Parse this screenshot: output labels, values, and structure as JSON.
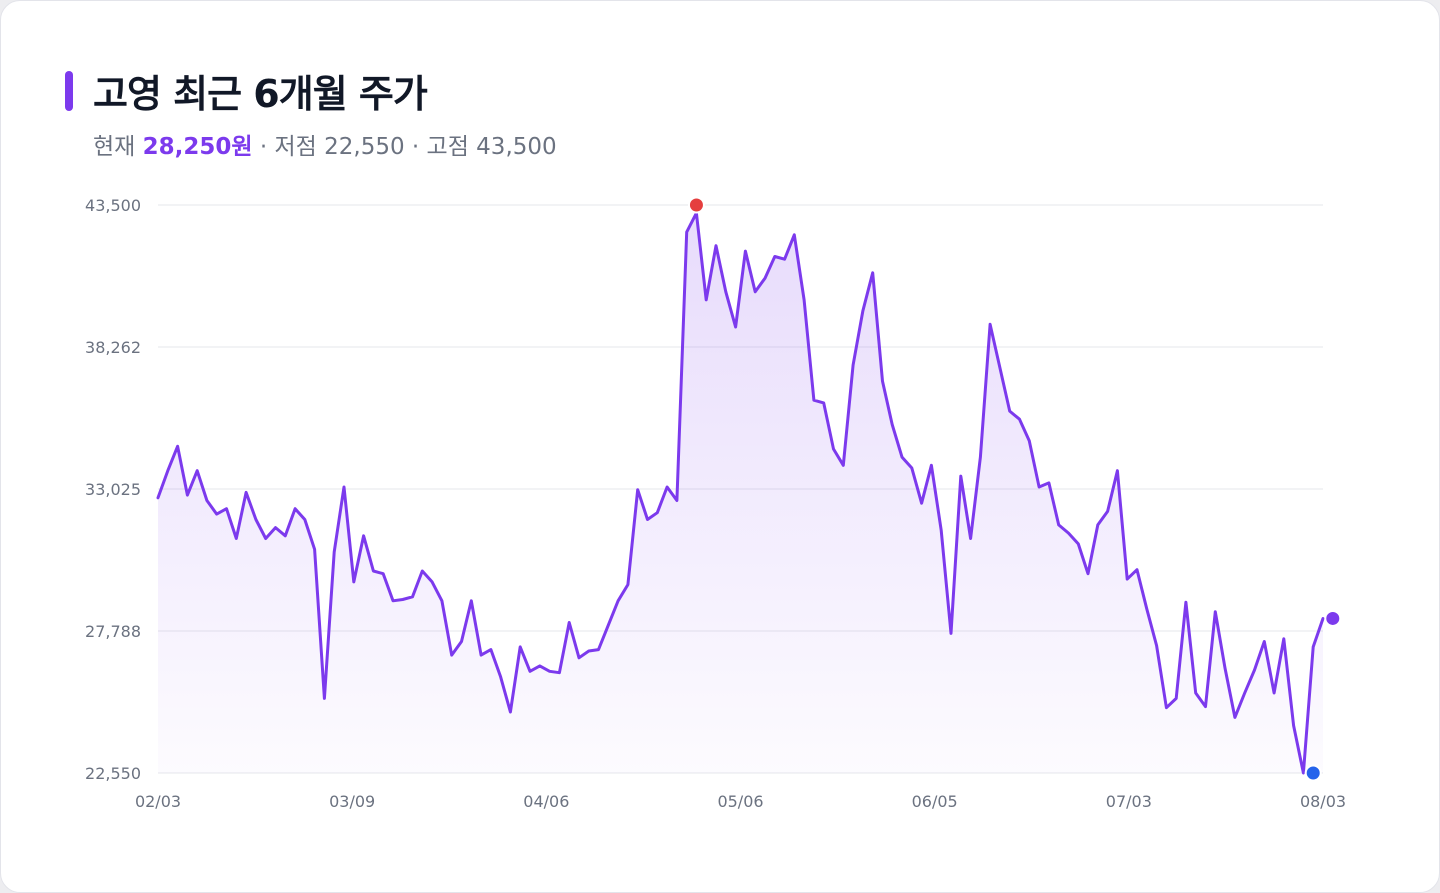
{
  "header": {
    "title": "고영 최근 6개월 주가",
    "now_label": "현재",
    "now_value": "28,250원",
    "low_label": "· 저점 22,550",
    "high_label": "· 고점 43,500"
  },
  "colors": {
    "accent": "#7c3aed",
    "line": "#7c3aed",
    "high_marker": "#e53e3e",
    "low_marker": "#2563eb",
    "last_marker": "#7c3aed",
    "grid": "#e5e7eb"
  },
  "chart_data": {
    "type": "area",
    "title": "고영 최근 6개월 주가",
    "ylim": [
      22550,
      43500
    ],
    "y_ticks": [
      "43,500",
      "38,262",
      "33,025",
      "27,788",
      "22,550"
    ],
    "y_tick_values": [
      43500,
      38262,
      33025,
      27788,
      22550
    ],
    "x_ticks": [
      "02/03",
      "03/09",
      "04/06",
      "05/06",
      "06/05",
      "07/03",
      "08/03"
    ],
    "grid": true,
    "values": [
      32700,
      33700,
      34600,
      32800,
      33700,
      32600,
      32100,
      32300,
      31200,
      32900,
      31900,
      31200,
      31600,
      31300,
      32300,
      31900,
      30800,
      25300,
      30700,
      33100,
      29600,
      31300,
      30000,
      29900,
      28900,
      28950,
      29050,
      30000,
      29600,
      28900,
      26900,
      27400,
      28900,
      26900,
      27100,
      26100,
      24800,
      27200,
      26300,
      26500,
      26300,
      26250,
      28100,
      26800,
      27050,
      27100,
      28000,
      28900,
      29500,
      33000,
      31900,
      32150,
      33100,
      32600,
      42500,
      43200,
      40000,
      42000,
      40300,
      39000,
      41800,
      40300,
      40800,
      41600,
      41500,
      42400,
      40000,
      36300,
      36200,
      34500,
      33900,
      37600,
      39600,
      41000,
      37000,
      35400,
      34200,
      33800,
      32500,
      33900,
      31500,
      27700,
      33500,
      31200,
      34200,
      39100,
      37500,
      35900,
      35600,
      34800,
      33100,
      33250,
      31700,
      31400,
      31000,
      29900,
      31700,
      32200,
      33700,
      29700,
      30050,
      28600,
      27250,
      24960,
      25300,
      28850,
      25500,
      25000,
      28500,
      26400,
      24600,
      25500,
      26350,
      27400,
      25500,
      27500,
      24300,
      22550,
      27200,
      28250
    ],
    "high": {
      "value": 43500,
      "index": 55
    },
    "low": {
      "value": 22550,
      "index": 118
    },
    "last": {
      "value": 28250,
      "index": 120
    }
  }
}
